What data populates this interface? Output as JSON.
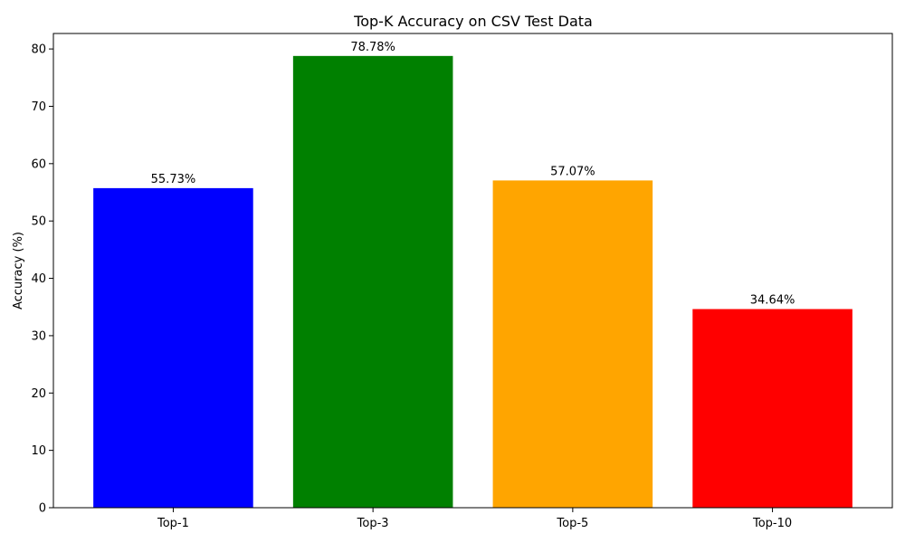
{
  "chart_data": {
    "type": "bar",
    "title": "Top-K Accuracy on CSV Test Data",
    "xlabel": "",
    "ylabel": "Accuracy (%)",
    "categories": [
      "Top-1",
      "Top-3",
      "Top-5",
      "Top-10"
    ],
    "values": [
      55.73,
      78.78,
      57.07,
      34.64
    ],
    "value_labels": [
      "55.73%",
      "78.78%",
      "57.07%",
      "34.64%"
    ],
    "colors": [
      "#0000ff",
      "#008000",
      "#ffa500",
      "#ff0000"
    ],
    "ylim": [
      0,
      82.7
    ],
    "yticks": [
      0,
      10,
      20,
      30,
      40,
      50,
      60,
      70,
      80
    ],
    "ytick_labels": [
      "0",
      "10",
      "20",
      "30",
      "40",
      "50",
      "60",
      "70",
      "80"
    ],
    "grid": false,
    "legend": "none"
  }
}
